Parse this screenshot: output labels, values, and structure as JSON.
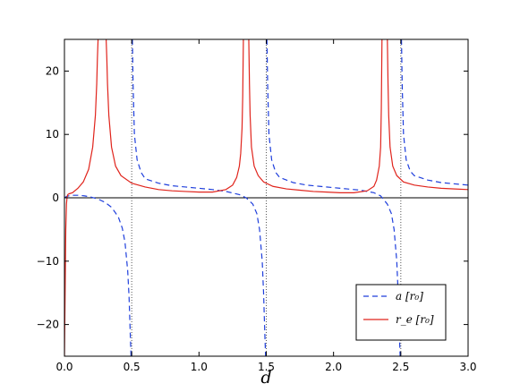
{
  "chart_data": {
    "type": "line",
    "title": "",
    "xlabel": "d",
    "ylabel": "",
    "xlim": [
      0.0,
      3.0
    ],
    "ylim": [
      -25,
      25
    ],
    "x_ticks": [
      "0.0",
      "0.5",
      "1.0",
      "1.5",
      "2.0",
      "2.5",
      "3.0"
    ],
    "y_ticks": [
      "−20",
      "−10",
      "0",
      "10",
      "20"
    ],
    "grid": false,
    "legend_position": "lower-right",
    "reference_lines": {
      "horizontal_y": 0,
      "vertical_dotted_x": [
        0.5,
        1.5,
        2.5
      ]
    },
    "series": [
      {
        "name": "a [r₀]",
        "style": "dashed",
        "color": "#1f3fdc",
        "x": [
          0.0,
          0.02,
          0.05,
          0.1,
          0.15,
          0.2,
          0.25,
          0.3,
          0.35,
          0.4,
          0.43,
          0.45,
          0.47,
          0.48,
          0.49,
          0.495
        ],
        "y": [
          0.0,
          0.25,
          0.4,
          0.4,
          0.3,
          0.1,
          -0.2,
          -0.7,
          -1.5,
          -3.0,
          -4.8,
          -7.0,
          -11.5,
          -15.5,
          -22.0,
          -25.0
        ],
        "segments": [
          {
            "x": [
              0.0,
              0.02,
              0.05,
              0.1,
              0.15,
              0.2,
              0.25,
              0.3,
              0.35,
              0.4,
              0.43,
              0.45,
              0.47,
              0.48,
              0.49,
              0.495
            ],
            "y": [
              0.0,
              0.25,
              0.4,
              0.4,
              0.3,
              0.1,
              -0.2,
              -0.7,
              -1.5,
              -3.0,
              -4.8,
              -7.0,
              -11.5,
              -15.5,
              -22.0,
              -25.0
            ]
          },
          {
            "x": [
              0.505,
              0.51,
              0.52,
              0.54,
              0.57,
              0.6,
              0.7,
              0.8,
              0.9,
              1.0,
              1.1,
              1.2,
              1.3,
              1.35,
              1.4,
              1.43,
              1.45,
              1.47,
              1.48,
              1.49,
              1.495
            ],
            "y": [
              25.0,
              18.0,
              10.0,
              6.0,
              4.0,
              3.0,
              2.3,
              1.9,
              1.7,
              1.5,
              1.3,
              1.0,
              0.5,
              0.0,
              -1.0,
              -2.5,
              -5.0,
              -10.0,
              -15.0,
              -22.0,
              -25.0
            ]
          },
          {
            "x": [
              1.505,
              1.51,
              1.52,
              1.54,
              1.57,
              1.6,
              1.7,
              1.8,
              1.9,
              2.0,
              2.1,
              2.2,
              2.3,
              2.35,
              2.4,
              2.43,
              2.45,
              2.47,
              2.48,
              2.49,
              2.495
            ],
            "y": [
              25.0,
              18.0,
              10.0,
              6.0,
              4.0,
              3.2,
              2.4,
              2.0,
              1.8,
              1.6,
              1.4,
              1.2,
              0.8,
              0.3,
              -1.0,
              -2.5,
              -5.0,
              -10.0,
              -15.0,
              -22.0,
              -25.0
            ]
          },
          {
            "x": [
              2.505,
              2.51,
              2.52,
              2.54,
              2.57,
              2.6,
              2.7,
              2.8,
              2.9,
              3.0
            ],
            "y": [
              25.0,
              18.0,
              10.0,
              6.0,
              4.2,
              3.5,
              2.8,
              2.4,
              2.2,
              2.0
            ]
          }
        ]
      },
      {
        "name": "r_e [r₀]",
        "style": "solid",
        "color": "#e0241c",
        "x": [
          0.0,
          0.005,
          0.01,
          0.015,
          0.02,
          0.025,
          0.03
        ],
        "y": [
          -25.0,
          -15.0,
          -5.0,
          -1.0,
          0.2,
          0.5,
          0.6
        ],
        "segments": [
          {
            "x": [
              0.0,
              0.005,
              0.01,
              0.015,
              0.02,
              0.025,
              0.03
            ],
            "y": [
              -25.0,
              -15.0,
              -5.0,
              -1.0,
              0.2,
              0.5,
              0.6
            ]
          },
          {
            "x": [
              0.03,
              0.06,
              0.1,
              0.14,
              0.18,
              0.21,
              0.23,
              0.24,
              0.245,
              0.25
            ],
            "y": [
              0.6,
              0.8,
              1.5,
              2.5,
              4.5,
              8.0,
              13.0,
              18.0,
              22.0,
              25.0
            ]
          },
          {
            "x": [
              0.31,
              0.315,
              0.32,
              0.33,
              0.35,
              0.38,
              0.42,
              0.5,
              0.6,
              0.7,
              0.8,
              0.9,
              1.0,
              1.1,
              1.2,
              1.25,
              1.28,
              1.3,
              1.31,
              1.32,
              1.325,
              1.33
            ],
            "y": [
              25.0,
              22.0,
              18.0,
              13.0,
              8.0,
              5.0,
              3.5,
              2.3,
              1.7,
              1.3,
              1.1,
              1.0,
              0.9,
              0.9,
              1.3,
              2.0,
              3.2,
              5.0,
              7.0,
              11.0,
              16.0,
              25.0
            ]
          },
          {
            "x": [
              1.37,
              1.375,
              1.38,
              1.39,
              1.41,
              1.44,
              1.48,
              1.55,
              1.65,
              1.75,
              1.85,
              1.95,
              2.05,
              2.15,
              2.25,
              2.3,
              2.32,
              2.34,
              2.35,
              2.355,
              2.36
            ],
            "y": [
              25.0,
              18.0,
              13.0,
              8.0,
              5.0,
              3.5,
              2.5,
              1.8,
              1.4,
              1.2,
              1.0,
              0.9,
              0.8,
              0.8,
              1.1,
              1.8,
              2.8,
              5.0,
              8.0,
              14.0,
              25.0
            ]
          },
          {
            "x": [
              2.4,
              2.405,
              2.41,
              2.42,
              2.44,
              2.47,
              2.52,
              2.6,
              2.7,
              2.8,
              2.9,
              3.0
            ],
            "y": [
              25.0,
              18.0,
              13.0,
              8.0,
              5.0,
              3.5,
              2.5,
              2.0,
              1.7,
              1.5,
              1.4,
              1.3
            ]
          }
        ]
      }
    ]
  }
}
